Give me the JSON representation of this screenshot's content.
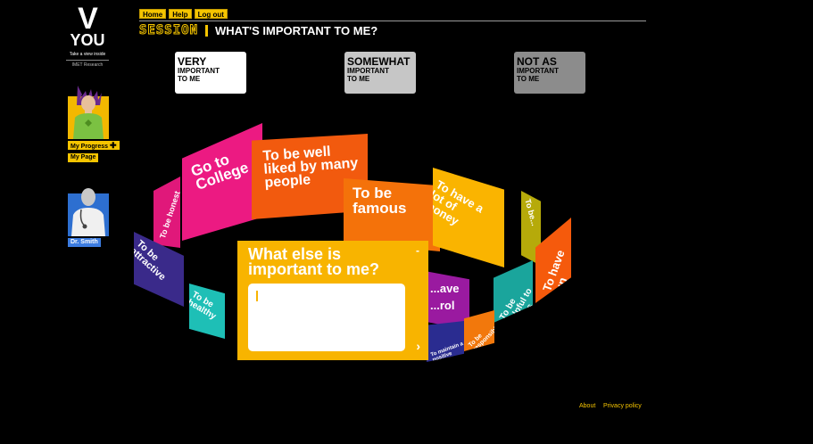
{
  "logo": {
    "letter": "V",
    "word": "YOU",
    "tagline": "Take a view inside",
    "org": "IMET Research"
  },
  "sidebar": {
    "my_progress": "My Progress",
    "progress_icon": "plus-icon",
    "my_page": "My Page",
    "doctor": "Dr. Smith"
  },
  "nav": {
    "home": "Home",
    "help": "Help",
    "logout": "Log out"
  },
  "session": {
    "label": "SESSION",
    "title": "WHAT'S IMPORTANT TO ME?"
  },
  "importance": [
    {
      "big": "VERY",
      "small1": "IMPORTANT",
      "small2": "TO ME"
    },
    {
      "big": "SOMEWHAT",
      "small1": "IMPORTANT",
      "small2": "TO ME"
    },
    {
      "big": "NOT AS",
      "small1": "IMPORTANT",
      "small2": "TO ME"
    }
  ],
  "cards": [
    {
      "text": "To be honest",
      "color": "#e0187a"
    },
    {
      "text": "Go to College",
      "color": "#ec1a82"
    },
    {
      "text": "To be well liked by many people",
      "color": "#f25a0e"
    },
    {
      "text": "To be famous",
      "color": "#f4720a"
    },
    {
      "text": "To have a lot of money",
      "color": "#fab400"
    },
    {
      "text": "To be...",
      "color": "#b6aa0a"
    },
    {
      "text": "To have fun",
      "color": "#f55a0c"
    },
    {
      "text": "To be attractive",
      "color": "#3a2a8a"
    },
    {
      "text": "To be healthy",
      "color": "#1ebfb6"
    },
    {
      "text": "...ave ...rol",
      "color": "#9a1aa0"
    },
    {
      "text": "To be helpful to others",
      "color": "#1aa59c"
    },
    {
      "text": "To be responsible",
      "color": "#f2780c"
    },
    {
      "text": "To maintain a positive outlook",
      "color": "#2a2c90"
    }
  ],
  "dialog": {
    "title": "What else is important to me?",
    "close": "-",
    "next": "›",
    "input_value": ""
  },
  "footer": {
    "about": "About",
    "privacy": "Privacy policy"
  },
  "colors": {
    "accent": "#f5c400",
    "dialog": "#f8b400",
    "doctor_link": "#3c7ce0"
  }
}
